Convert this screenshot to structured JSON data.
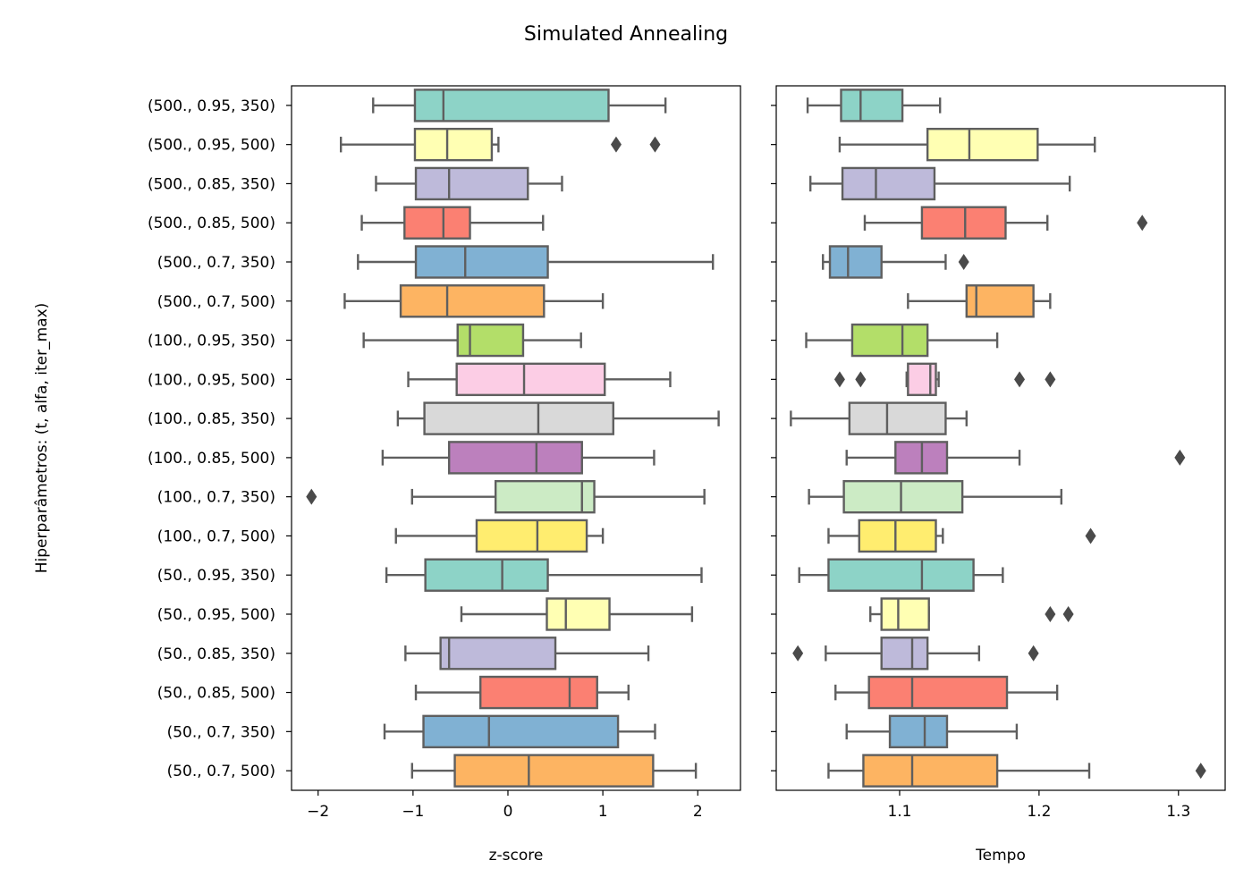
{
  "title": "Simulated Annealing",
  "ylabel": "Hiperparâmetros: (t, alfa, iter_max)",
  "categories": [
    "(500., 0.95, 350)",
    "(500., 0.95, 500)",
    "(500., 0.85, 350)",
    "(500., 0.85, 500)",
    "(500., 0.7, 350)",
    "(500., 0.7, 500)",
    "(100., 0.95, 350)",
    "(100., 0.95, 500)",
    "(100., 0.85, 350)",
    "(100., 0.85, 500)",
    "(100., 0.7, 350)",
    "(100., 0.7, 500)",
    "(50., 0.95, 350)",
    "(50., 0.95, 500)",
    "(50., 0.85, 350)",
    "(50., 0.85, 500)",
    "(50., 0.7, 350)",
    "(50., 0.7, 500)"
  ],
  "colors": [
    "#8dd3c7",
    "#ffffb3",
    "#bebada",
    "#fb8072",
    "#80b1d3",
    "#fdb462",
    "#b3de69",
    "#fccde5",
    "#d9d9d9",
    "#bc80bd",
    "#ccebc5",
    "#ffed6f"
  ],
  "chart_data": [
    {
      "type": "box",
      "xlabel": "z-score",
      "xlim": [
        -2.28,
        2.45
      ],
      "xticks": [
        -2,
        -1,
        0,
        1,
        2
      ],
      "xtick_labels": [
        "−2",
        "−1",
        "0",
        "1",
        "2"
      ],
      "boxes": [
        {
          "whislo": -1.42,
          "q1": -0.98,
          "med": -0.68,
          "q3": 1.06,
          "whishi": 1.66,
          "fliers": []
        },
        {
          "whislo": -1.76,
          "q1": -0.98,
          "med": -0.64,
          "q3": -0.17,
          "whishi": -0.1,
          "fliers": [
            1.14,
            1.55
          ]
        },
        {
          "whislo": -1.39,
          "q1": -0.97,
          "med": -0.62,
          "q3": 0.21,
          "whishi": 0.57,
          "fliers": []
        },
        {
          "whislo": -1.54,
          "q1": -1.09,
          "med": -0.68,
          "q3": -0.4,
          "whishi": 0.37,
          "fliers": []
        },
        {
          "whislo": -1.58,
          "q1": -0.97,
          "med": -0.45,
          "q3": 0.42,
          "whishi": 2.16,
          "fliers": []
        },
        {
          "whislo": -1.72,
          "q1": -1.13,
          "med": -0.64,
          "q3": 0.38,
          "whishi": 1.0,
          "fliers": []
        },
        {
          "whislo": -1.52,
          "q1": -0.53,
          "med": -0.4,
          "q3": 0.16,
          "whishi": 0.77,
          "fliers": []
        },
        {
          "whislo": -1.05,
          "q1": -0.54,
          "med": 0.17,
          "q3": 1.02,
          "whishi": 1.71,
          "fliers": []
        },
        {
          "whislo": -1.16,
          "q1": -0.88,
          "med": 0.32,
          "q3": 1.11,
          "whishi": 2.22,
          "fliers": []
        },
        {
          "whislo": -1.32,
          "q1": -0.62,
          "med": 0.3,
          "q3": 0.78,
          "whishi": 1.54,
          "fliers": []
        },
        {
          "whislo": -1.01,
          "q1": -0.13,
          "med": 0.78,
          "q3": 0.91,
          "whishi": 2.07,
          "fliers": [
            -2.07
          ]
        },
        {
          "whislo": -1.18,
          "q1": -0.33,
          "med": 0.31,
          "q3": 0.83,
          "whishi": 1.0,
          "fliers": []
        },
        {
          "whislo": -1.28,
          "q1": -0.87,
          "med": -0.06,
          "q3": 0.42,
          "whishi": 2.04,
          "fliers": []
        },
        {
          "whislo": -0.49,
          "q1": 0.41,
          "med": 0.61,
          "q3": 1.07,
          "whishi": 1.94,
          "fliers": []
        },
        {
          "whislo": -1.08,
          "q1": -0.71,
          "med": -0.62,
          "q3": 0.5,
          "whishi": 1.48,
          "fliers": []
        },
        {
          "whislo": -0.97,
          "q1": -0.29,
          "med": 0.65,
          "q3": 0.94,
          "whishi": 1.27,
          "fliers": []
        },
        {
          "whislo": -1.3,
          "q1": -0.89,
          "med": -0.2,
          "q3": 1.16,
          "whishi": 1.55,
          "fliers": []
        },
        {
          "whislo": -1.01,
          "q1": -0.56,
          "med": 0.22,
          "q3": 1.53,
          "whishi": 1.98,
          "fliers": []
        }
      ]
    },
    {
      "type": "box",
      "xlabel": "Tempo",
      "xlim": [
        1.0115,
        1.3335
      ],
      "xticks": [
        1.1,
        1.2,
        1.3
      ],
      "xtick_labels": [
        "1.1",
        "1.2",
        "1.3"
      ],
      "boxes": [
        {
          "whislo": 1.034,
          "q1": 1.058,
          "med": 1.072,
          "q3": 1.102,
          "whishi": 1.129,
          "fliers": []
        },
        {
          "whislo": 1.057,
          "q1": 1.12,
          "med": 1.15,
          "q3": 1.199,
          "whishi": 1.24,
          "fliers": []
        },
        {
          "whislo": 1.036,
          "q1": 1.059,
          "med": 1.083,
          "q3": 1.125,
          "whishi": 1.222,
          "fliers": []
        },
        {
          "whislo": 1.075,
          "q1": 1.116,
          "med": 1.147,
          "q3": 1.176,
          "whishi": 1.206,
          "fliers": [
            1.274
          ]
        },
        {
          "whislo": 1.045,
          "q1": 1.05,
          "med": 1.063,
          "q3": 1.087,
          "whishi": 1.133,
          "fliers": [
            1.146
          ]
        },
        {
          "whislo": 1.106,
          "q1": 1.148,
          "med": 1.155,
          "q3": 1.196,
          "whishi": 1.208,
          "fliers": []
        },
        {
          "whislo": 1.033,
          "q1": 1.066,
          "med": 1.102,
          "q3": 1.12,
          "whishi": 1.17,
          "fliers": []
        },
        {
          "whislo": 1.105,
          "q1": 1.106,
          "med": 1.122,
          "q3": 1.126,
          "whishi": 1.128,
          "fliers": [
            1.057,
            1.072,
            1.186,
            1.208
          ]
        },
        {
          "whislo": 1.022,
          "q1": 1.064,
          "med": 1.091,
          "q3": 1.133,
          "whishi": 1.148,
          "fliers": []
        },
        {
          "whislo": 1.062,
          "q1": 1.097,
          "med": 1.116,
          "q3": 1.134,
          "whishi": 1.186,
          "fliers": [
            1.301
          ]
        },
        {
          "whislo": 1.035,
          "q1": 1.06,
          "med": 1.101,
          "q3": 1.145,
          "whishi": 1.216,
          "fliers": []
        },
        {
          "whislo": 1.049,
          "q1": 1.071,
          "med": 1.097,
          "q3": 1.126,
          "whishi": 1.131,
          "fliers": [
            1.237
          ]
        },
        {
          "whislo": 1.028,
          "q1": 1.049,
          "med": 1.116,
          "q3": 1.153,
          "whishi": 1.174,
          "fliers": []
        },
        {
          "whislo": 1.079,
          "q1": 1.087,
          "med": 1.099,
          "q3": 1.121,
          "whishi": 1.121,
          "fliers": [
            1.208,
            1.221
          ]
        },
        {
          "whislo": 1.047,
          "q1": 1.087,
          "med": 1.109,
          "q3": 1.12,
          "whishi": 1.157,
          "fliers": [
            1.027,
            1.196
          ]
        },
        {
          "whislo": 1.054,
          "q1": 1.078,
          "med": 1.109,
          "q3": 1.177,
          "whishi": 1.213,
          "fliers": []
        },
        {
          "whislo": 1.062,
          "q1": 1.093,
          "med": 1.118,
          "q3": 1.134,
          "whishi": 1.184,
          "fliers": []
        },
        {
          "whislo": 1.049,
          "q1": 1.074,
          "med": 1.109,
          "q3": 1.17,
          "whishi": 1.236,
          "fliers": [
            1.316
          ]
        }
      ]
    }
  ]
}
